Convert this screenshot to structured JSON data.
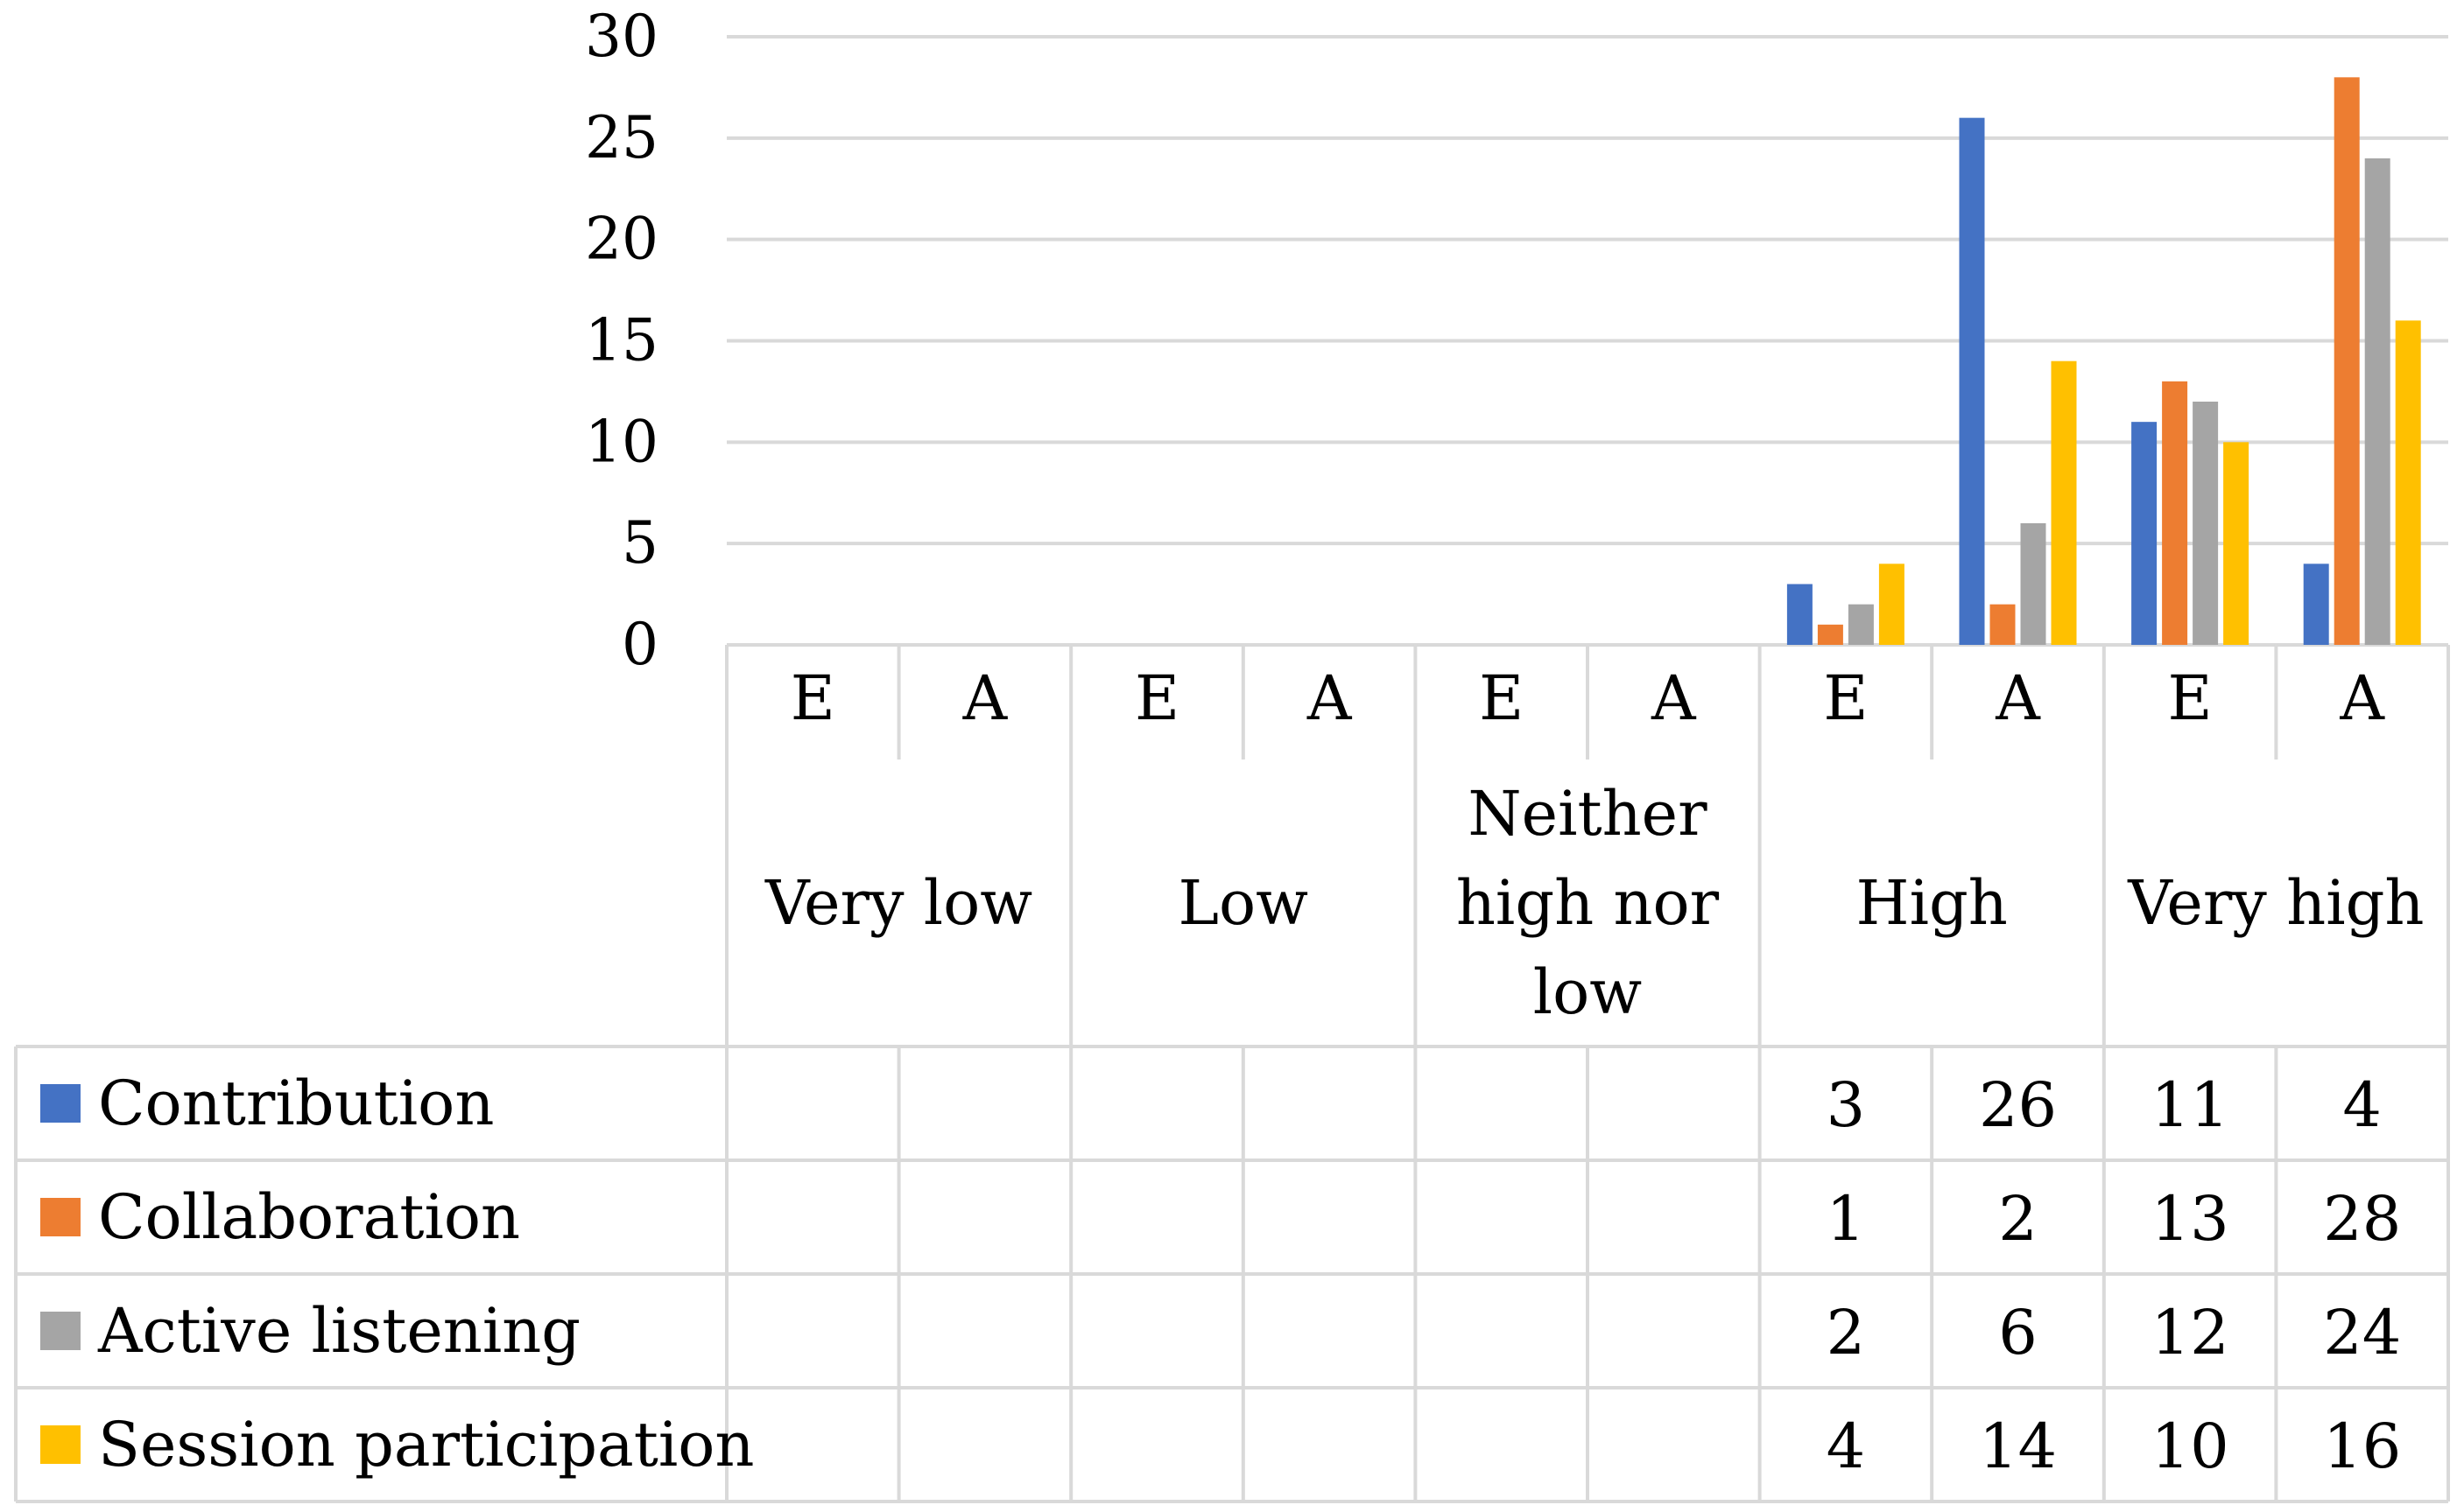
{
  "chart_data": {
    "type": "bar",
    "ylim": [
      0,
      30
    ],
    "yticks": [
      0,
      5,
      10,
      15,
      20,
      25,
      30
    ],
    "groups": [
      {
        "label": [
          "Very low"
        ]
      },
      {
        "label": [
          "Low"
        ]
      },
      {
        "label": [
          "Neither",
          "high nor",
          "low"
        ]
      },
      {
        "label": [
          "High"
        ]
      },
      {
        "label": [
          "Very high"
        ]
      }
    ],
    "categories": [
      "E",
      "A",
      "E",
      "A",
      "E",
      "A",
      "E",
      "A",
      "E",
      "A"
    ],
    "series": [
      {
        "name": "Contribution",
        "color": "#4472C4",
        "values": [
          null,
          null,
          null,
          null,
          null,
          null,
          3,
          26,
          11,
          4
        ]
      },
      {
        "name": "Collaboration",
        "color": "#ED7D31",
        "values": [
          null,
          null,
          null,
          null,
          null,
          null,
          1,
          2,
          13,
          28
        ]
      },
      {
        "name": "Active listening",
        "color": "#A5A5A5",
        "values": [
          null,
          null,
          null,
          null,
          null,
          null,
          2,
          6,
          12,
          24
        ]
      },
      {
        "name": "Session participation",
        "color": "#FFC000",
        "values": [
          null,
          null,
          null,
          null,
          null,
          null,
          4,
          14,
          10,
          16
        ]
      }
    ],
    "grid": true,
    "legend": "data table"
  }
}
